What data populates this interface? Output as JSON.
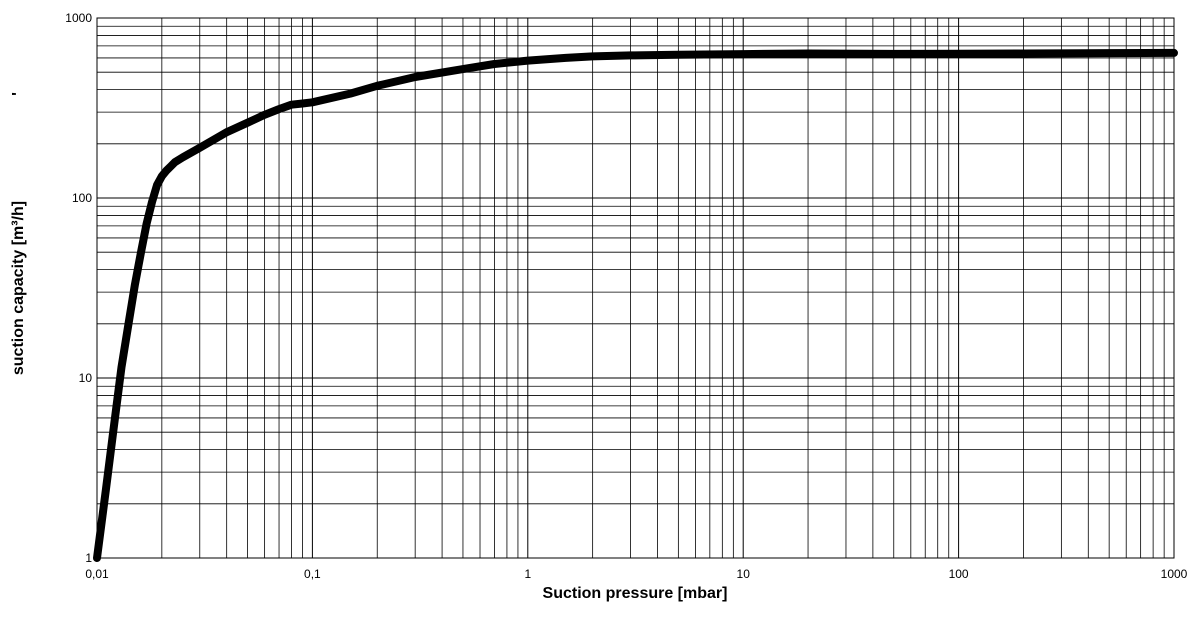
{
  "chart_data": {
    "type": "line",
    "title": "",
    "xlabel": "Suction pressure [mbar]",
    "ylabel": "suction capacity [m³/h]",
    "ylabel_mark": "'",
    "xscale": "log",
    "yscale": "log",
    "xlim": [
      0.01,
      1000
    ],
    "ylim": [
      1,
      1000
    ],
    "grid": true,
    "legend": "none",
    "x_ticks": [
      {
        "value": 0.01,
        "label": "0,01"
      },
      {
        "value": 0.1,
        "label": "0,1"
      },
      {
        "value": 1,
        "label": "1"
      },
      {
        "value": 10,
        "label": "10"
      },
      {
        "value": 100,
        "label": "100"
      },
      {
        "value": 1000,
        "label": "1000"
      }
    ],
    "y_ticks": [
      {
        "value": 1,
        "label": "1"
      },
      {
        "value": 10,
        "label": "10"
      },
      {
        "value": 100,
        "label": "100"
      },
      {
        "value": 1000,
        "label": "1000"
      }
    ],
    "series": [
      {
        "color": "#000000",
        "x": [
          0.01,
          0.011,
          0.012,
          0.013,
          0.014,
          0.015,
          0.016,
          0.017,
          0.018,
          0.019,
          0.02,
          0.021,
          0.022,
          0.023,
          0.025,
          0.03,
          0.04,
          0.05,
          0.06,
          0.07,
          0.08,
          0.09,
          0.1,
          0.15,
          0.2,
          0.3,
          0.5,
          0.7,
          1,
          1.5,
          2,
          3,
          5,
          10,
          20,
          50,
          100,
          200,
          500,
          1000
        ],
        "y": [
          1,
          2.4,
          5.5,
          11.5,
          20,
          33,
          50,
          72,
          95,
          118,
          132,
          142,
          150,
          158,
          168,
          190,
          232,
          262,
          290,
          312,
          330,
          335,
          340,
          380,
          420,
          470,
          520,
          555,
          580,
          600,
          612,
          620,
          625,
          630,
          635,
          632,
          633,
          635,
          638,
          640
        ]
      }
    ]
  }
}
